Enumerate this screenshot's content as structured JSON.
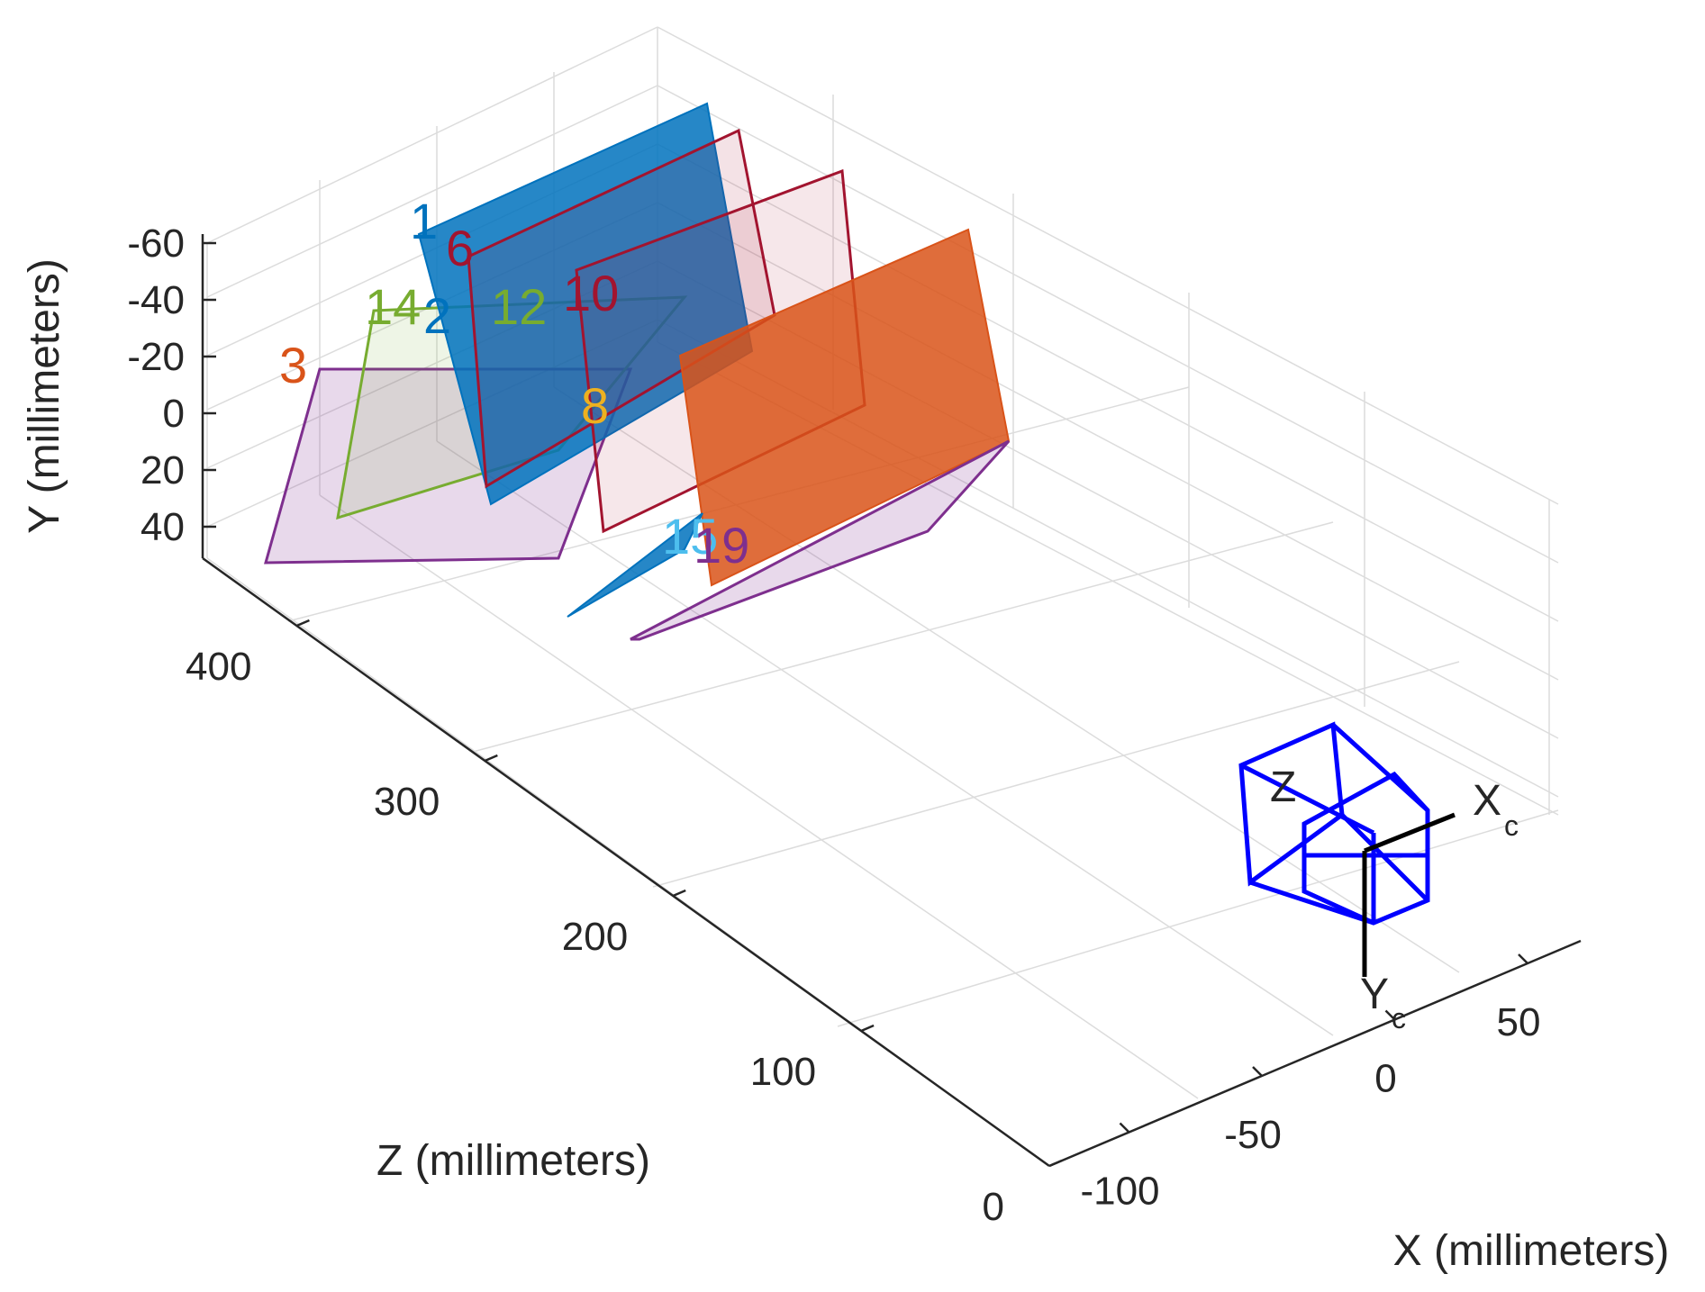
{
  "chart_data": {
    "type": "scatter",
    "subtype": "3d-extrinsics",
    "title": "",
    "xlabel": "X (millimeters)",
    "ylabel": "Y (millimeters)",
    "zlabel": "Z (millimeters)",
    "xlim": [
      -130,
      70
    ],
    "ylim": [
      -65,
      50
    ],
    "zlim": [
      0,
      450
    ],
    "x_ticks": [
      "-100",
      "-50",
      "0",
      "50"
    ],
    "y_ticks": [
      "-60",
      "-40",
      "-20",
      "0",
      "20",
      "40"
    ],
    "z_ticks": [
      "0",
      "100",
      "200",
      "300",
      "400"
    ],
    "grid": true,
    "camera": {
      "labels": {
        "z": "Z",
        "x": "X",
        "x_sub": "c",
        "y": "Y",
        "y_sub": "c"
      },
      "color": "#0000ff"
    },
    "patterns": [
      {
        "label": "1",
        "color": "#0072bd",
        "filled": true
      },
      {
        "label": "2",
        "color": "#0072bd",
        "filled": false
      },
      {
        "label": "3",
        "color": "#d95319",
        "filled": false
      },
      {
        "label": "6",
        "color": "#a2142f",
        "filled": false
      },
      {
        "label": "8",
        "color": "#edb120",
        "filled": false
      },
      {
        "label": "10",
        "color": "#a2142f",
        "filled": false
      },
      {
        "label": "12",
        "color": "#77ac30",
        "filled": false
      },
      {
        "label": "14",
        "color": "#77ac30",
        "filled": false
      },
      {
        "label": "15",
        "color": "#4dbeee",
        "filled": false
      },
      {
        "label": "19",
        "color": "#7e2f8e",
        "filled": false
      }
    ]
  }
}
